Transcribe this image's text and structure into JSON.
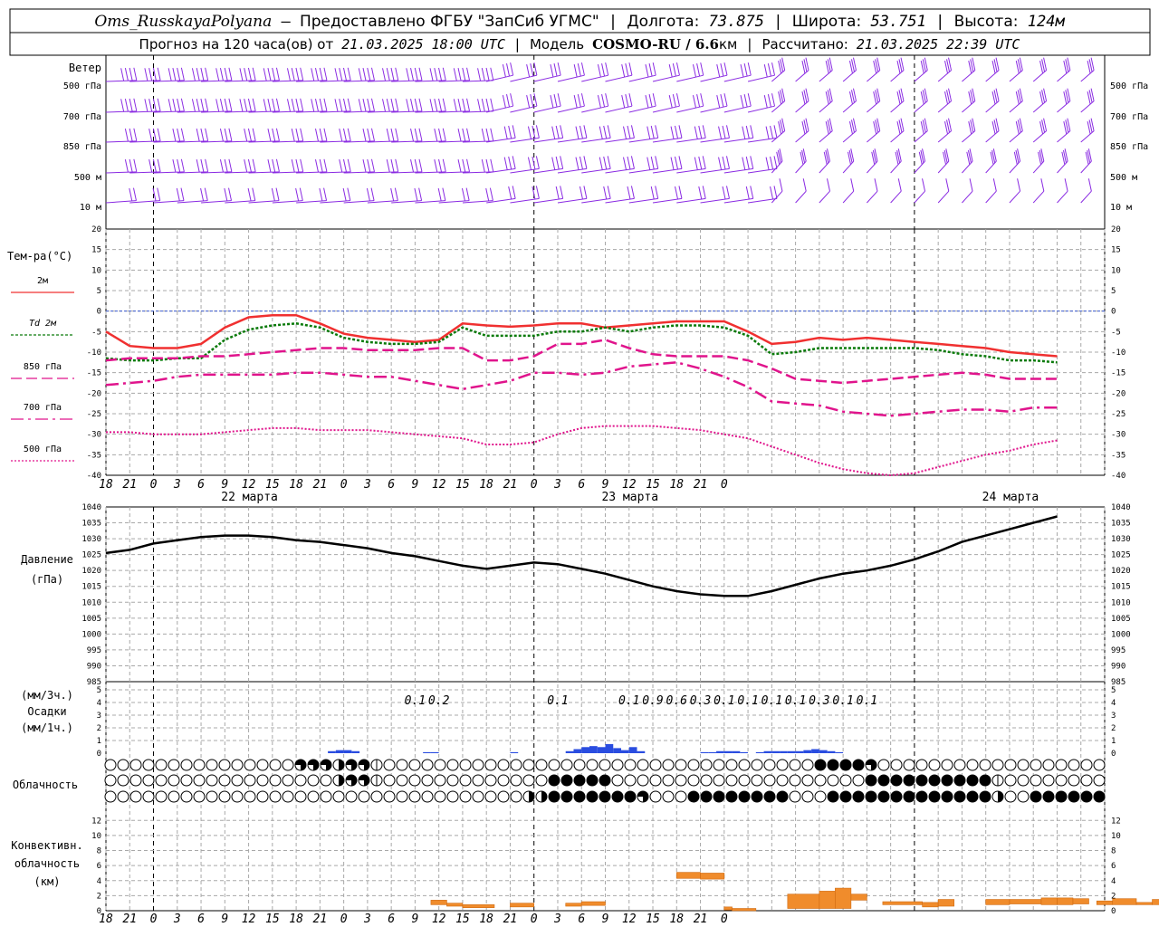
{
  "header": {
    "station": "Oms_RusskayaPolyana",
    "provider": "Предоставлено ФГБУ \"ЗапСиб УГМС\"",
    "lon_label": "Долгота:",
    "lon_value": "73.875",
    "lat_label": "Широта:",
    "lat_value": "53.751",
    "alt_label": "Высота:",
    "alt_value": "124м",
    "forecast_prefix": "Прогноз на 120 часа(ов) от",
    "forecast_time": "21.03.2025 18:00 UTC",
    "model_label": "Модель",
    "model_name": "COSMO-RU / 6.6",
    "model_unit": "км",
    "calc_label": "Рассчитано:",
    "calc_time": "21.03.2025 22:39 UTC"
  },
  "time_axis": {
    "hour_labels": [
      "18",
      "21",
      "0",
      "3",
      "6",
      "9",
      "12",
      "15",
      "18",
      "21",
      "0",
      "3",
      "6",
      "9",
      "12",
      "15",
      "18",
      "21",
      "0",
      "3",
      "6",
      "9",
      "12",
      "15",
      "18",
      "21",
      "0"
    ],
    "date_labels": [
      "22 марта",
      "23 марта",
      "24 марта"
    ]
  },
  "wind_panel": {
    "title": "Ветер",
    "levels": [
      "500 гПа",
      "700 гПа",
      "850 гПа",
      "500 м",
      "10  м"
    ]
  },
  "chart_data": [
    {
      "type": "line",
      "title": "Тем-ра(°С)",
      "x_hours": [
        0,
        3,
        6,
        9,
        12,
        15,
        18,
        21,
        24,
        27,
        30,
        33,
        36,
        39,
        42,
        45,
        48,
        51,
        54,
        57,
        60,
        63,
        66,
        69,
        72,
        75,
        78,
        81,
        84,
        87,
        90,
        93,
        96,
        99,
        102,
        105,
        108,
        111,
        114,
        117,
        120
      ],
      "ylim": [
        -40,
        20
      ],
      "yticks": [
        20,
        15,
        10,
        5,
        0,
        -5,
        -10,
        -15,
        -20,
        -25,
        -30,
        -35,
        -40
      ],
      "series": [
        {
          "name": "2м",
          "color": "#f03030",
          "style": "solid",
          "values": [
            -5,
            -8.5,
            -9,
            -9,
            -8,
            -4,
            -1.5,
            -1,
            -1,
            -3,
            -5.5,
            -6.5,
            -7,
            -7.5,
            -7,
            -3,
            -3.5,
            -3.8,
            -3.5,
            -3,
            -3,
            -4,
            -3.5,
            -3,
            -2.5,
            -2.5,
            -2.5,
            -5,
            -8,
            -7.5,
            -6.5,
            -7,
            -6.5,
            -7,
            -7.5,
            -8,
            -8.5,
            -9,
            -10,
            -10.5,
            -11
          ]
        },
        {
          "name": "Td  2м",
          "color": "#0a7a0a",
          "style": "dotted",
          "values": [
            -11.5,
            -12,
            -12,
            -11.5,
            -11.5,
            -7,
            -4.5,
            -3.5,
            -3,
            -4,
            -6.5,
            -7.5,
            -8,
            -8,
            -7.5,
            -4,
            -6,
            -6,
            -6,
            -5,
            -5,
            -4,
            -5,
            -4,
            -3.5,
            -3.5,
            -4,
            -6,
            -10.5,
            -10,
            -9,
            -9,
            -9,
            -9,
            -9,
            -9.5,
            -10.5,
            -11,
            -12,
            -12,
            -12.5
          ]
        },
        {
          "name": "850 гПа",
          "color": "#e0148c",
          "style": "dashed",
          "values": [
            -12,
            -11.5,
            -11.5,
            -11.5,
            -11,
            -11,
            -10.5,
            -10,
            -9.5,
            -9,
            -9,
            -9.5,
            -9.5,
            -9.5,
            -9,
            -9,
            -12,
            -12,
            -11,
            -8,
            -8,
            -7,
            -9,
            -10.5,
            -11,
            -11,
            -11,
            -12,
            -14,
            -16.5,
            -17,
            -17.5,
            -17,
            -16.5,
            -16,
            -15.5,
            -15,
            -15.5,
            -16.5,
            -16.5,
            -16.5
          ]
        },
        {
          "name": "700 гПа",
          "color": "#e0148c",
          "style": "dashdot",
          "values": [
            -18,
            -17.5,
            -17,
            -16,
            -15.5,
            -15.5,
            -15.5,
            -15.5,
            -15,
            -15,
            -15.5,
            -16,
            -16,
            -17,
            -18,
            -19,
            -18,
            -17,
            -15,
            -15,
            -15.5,
            -15,
            -13.5,
            -13,
            -12.5,
            -14,
            -16,
            -18.5,
            -22,
            -22.5,
            -23,
            -24.5,
            -25,
            -25.5,
            -25,
            -24.5,
            -24,
            -24,
            -24.5,
            -23.5,
            -23.5
          ]
        },
        {
          "name": "500 гПа",
          "color": "#e0148c",
          "style": "finedot",
          "values": [
            -29.5,
            -29.5,
            -30,
            -30,
            -30,
            -29.5,
            -29,
            -28.5,
            -28.5,
            -29,
            -29,
            -29,
            -29.5,
            -30,
            -30.5,
            -31,
            -32.5,
            -32.5,
            -32,
            -30,
            -28.5,
            -28,
            -28,
            -28,
            -28.5,
            -29,
            -30,
            -31,
            -33,
            -35,
            -37,
            -38.5,
            -39.5,
            -40,
            -39.5,
            -38,
            -36.5,
            -35,
            -34,
            -32.5,
            -31.5
          ]
        }
      ]
    },
    {
      "type": "line",
      "title": "Давление",
      "unit": "(гПа)",
      "x_hours": [
        0,
        3,
        6,
        9,
        12,
        15,
        18,
        21,
        24,
        27,
        30,
        33,
        36,
        39,
        42,
        45,
        48,
        51,
        54,
        57,
        60,
        63,
        66,
        69,
        72,
        75,
        78,
        81,
        84,
        87,
        90,
        93,
        96,
        99,
        102,
        105,
        108,
        111,
        114,
        117,
        120
      ],
      "ylim": [
        985,
        1040
      ],
      "yticks": [
        1040,
        1035,
        1030,
        1025,
        1020,
        1015,
        1010,
        1005,
        1000,
        995,
        990,
        985
      ],
      "series": [
        {
          "name": "",
          "color": "#000000",
          "style": "solid",
          "values": [
            1025.5,
            1026.5,
            1028.5,
            1029.5,
            1030.5,
            1031,
            1031,
            1030.5,
            1029.5,
            1029,
            1028,
            1027,
            1025.5,
            1024.5,
            1023,
            1021.5,
            1020.5,
            1021.5,
            1022.5,
            1022,
            1020.5,
            1019,
            1017,
            1015,
            1013.5,
            1012.5,
            1012,
            1012,
            1013.5,
            1015.5,
            1017.5,
            1019,
            1020,
            1021.5,
            1023.5,
            1026,
            1029,
            1031,
            1033,
            1035,
            1037
          ]
        }
      ]
    },
    {
      "type": "bar",
      "title": "Осадки",
      "unit_3h": "(мм/3ч.)",
      "unit_1h": "(мм/1ч.)",
      "ylim": [
        0,
        5
      ],
      "yticks": [
        5,
        4,
        3,
        2,
        1,
        0
      ],
      "amounts_3h": [
        {
          "hour": 45,
          "label": "0.1"
        },
        {
          "hour": 48,
          "label": "0.2"
        },
        {
          "hour": 63,
          "label": "0.1"
        },
        {
          "hour": 72,
          "label": "0.1"
        },
        {
          "hour": 75,
          "label": "0.9"
        },
        {
          "hour": 78,
          "label": "0.6"
        },
        {
          "hour": 81,
          "label": "0.3"
        },
        {
          "hour": 84,
          "label": "0.1"
        },
        {
          "hour": 87,
          "label": "0.1"
        },
        {
          "hour": 90,
          "label": "0.1"
        },
        {
          "hour": 93,
          "label": "0.1"
        },
        {
          "hour": 96,
          "label": "0.3"
        },
        {
          "hour": 99,
          "label": "0.1"
        },
        {
          "hour": 102,
          "label": "0.1"
        }
      ],
      "hourly": [
        {
          "hour": 34,
          "value": 0.1
        },
        {
          "hour": 35,
          "value": 0.15
        },
        {
          "hour": 36,
          "value": 0.15
        },
        {
          "hour": 37,
          "value": 0.1
        },
        {
          "hour": 46,
          "value": 0.05
        },
        {
          "hour": 47,
          "value": 0.05
        },
        {
          "hour": 57,
          "value": 0.05
        },
        {
          "hour": 64,
          "value": 0.1
        },
        {
          "hour": 65,
          "value": 0.2
        },
        {
          "hour": 66,
          "value": 0.3
        },
        {
          "hour": 67,
          "value": 0.35
        },
        {
          "hour": 68,
          "value": 0.3
        },
        {
          "hour": 69,
          "value": 0.45
        },
        {
          "hour": 70,
          "value": 0.25
        },
        {
          "hour": 71,
          "value": 0.15
        },
        {
          "hour": 72,
          "value": 0.3
        },
        {
          "hour": 73,
          "value": 0.1
        },
        {
          "hour": 81,
          "value": 0.05
        },
        {
          "hour": 82,
          "value": 0.05
        },
        {
          "hour": 83,
          "value": 0.1
        },
        {
          "hour": 84,
          "value": 0.1
        },
        {
          "hour": 85,
          "value": 0.1
        },
        {
          "hour": 86,
          "value": 0.05
        },
        {
          "hour": 88,
          "value": 0.05
        },
        {
          "hour": 89,
          "value": 0.1
        },
        {
          "hour": 90,
          "value": 0.1
        },
        {
          "hour": 91,
          "value": 0.1
        },
        {
          "hour": 92,
          "value": 0.1
        },
        {
          "hour": 93,
          "value": 0.1
        },
        {
          "hour": 94,
          "value": 0.15
        },
        {
          "hour": 95,
          "value": 0.2
        },
        {
          "hour": 96,
          "value": 0.15
        },
        {
          "hour": 97,
          "value": 0.1
        },
        {
          "hour": 98,
          "value": 0.05
        }
      ]
    },
    {
      "type": "table",
      "title": "Облачность",
      "rows": [
        "000000000000000556455200000000000000000000000000000000008888500000000000000000000000000000000000000",
        "000000000000000000455300000000000008888800000000000000000000888888888820000000000000000000000000000",
        "000000000000000000000000000000000448888888500088888888000888888888888840088888888888888888880488888"
      ]
    },
    {
      "type": "bar",
      "title": "Конвективн.",
      "title2": "облачность",
      "unit": "(км)",
      "ylim": [
        0,
        13
      ],
      "yticks": [
        12,
        10,
        8,
        6,
        4,
        2,
        0
      ],
      "bars": [
        {
          "h0": 47,
          "h1": 49,
          "bottom": 0.8,
          "top": 1.4
        },
        {
          "h0": 49,
          "h1": 51,
          "bottom": 0.6,
          "top": 1.0
        },
        {
          "h0": 51,
          "h1": 55,
          "bottom": 0.4,
          "top": 0.8
        },
        {
          "h0": 57,
          "h1": 60,
          "bottom": 0.5,
          "top": 1.0
        },
        {
          "h0": 64,
          "h1": 66,
          "bottom": 0.6,
          "top": 1.0
        },
        {
          "h0": 66,
          "h1": 69,
          "bottom": 0.7,
          "top": 1.2
        },
        {
          "h0": 78,
          "h1": 81,
          "bottom": 4.3,
          "top": 5.1
        },
        {
          "h0": 81,
          "h1": 84,
          "bottom": 4.2,
          "top": 5.0
        },
        {
          "h0": 84,
          "h1": 85,
          "bottom": 0.1,
          "top": 0.5
        },
        {
          "h0": 85,
          "h1": 88,
          "bottom": 0.0,
          "top": 0.3
        },
        {
          "h0": 92,
          "h1": 96,
          "bottom": 0.3,
          "top": 2.2
        },
        {
          "h0": 96,
          "h1": 98,
          "bottom": 0.3,
          "top": 2.6
        },
        {
          "h0": 98,
          "h1": 100,
          "bottom": 0.3,
          "top": 3.0
        },
        {
          "h0": 100,
          "h1": 102,
          "bottom": 1.4,
          "top": 2.2
        },
        {
          "h0": 104,
          "h1": 109,
          "bottom": 0.8,
          "top": 1.2
        },
        {
          "h0": 109,
          "h1": 111,
          "bottom": 0.5,
          "top": 1.1
        },
        {
          "h0": 111,
          "h1": 113,
          "bottom": 0.6,
          "top": 1.5
        },
        {
          "h0": 117,
          "h1": 120,
          "bottom": 0.8,
          "top": 1.5
        },
        {
          "h0": 120,
          "h1": 124,
          "bottom": 0.9,
          "top": 1.5
        },
        {
          "h0": 124,
          "h1": 126,
          "bottom": 0.8,
          "top": 1.7
        },
        {
          "h0": 126,
          "h1": 128,
          "bottom": 0.8,
          "top": 1.7
        },
        {
          "h0": 128,
          "h1": 130,
          "bottom": 0.9,
          "top": 1.6
        },
        {
          "h0": 131,
          "h1": 133,
          "bottom": 0.8,
          "top": 1.3
        },
        {
          "h0": 133,
          "h1": 136,
          "bottom": 0.8,
          "top": 1.6
        },
        {
          "h0": 136,
          "h1": 138,
          "bottom": 0.8,
          "top": 1.1
        },
        {
          "h0": 138,
          "h1": 140,
          "bottom": 0.8,
          "top": 1.5
        }
      ]
    }
  ]
}
